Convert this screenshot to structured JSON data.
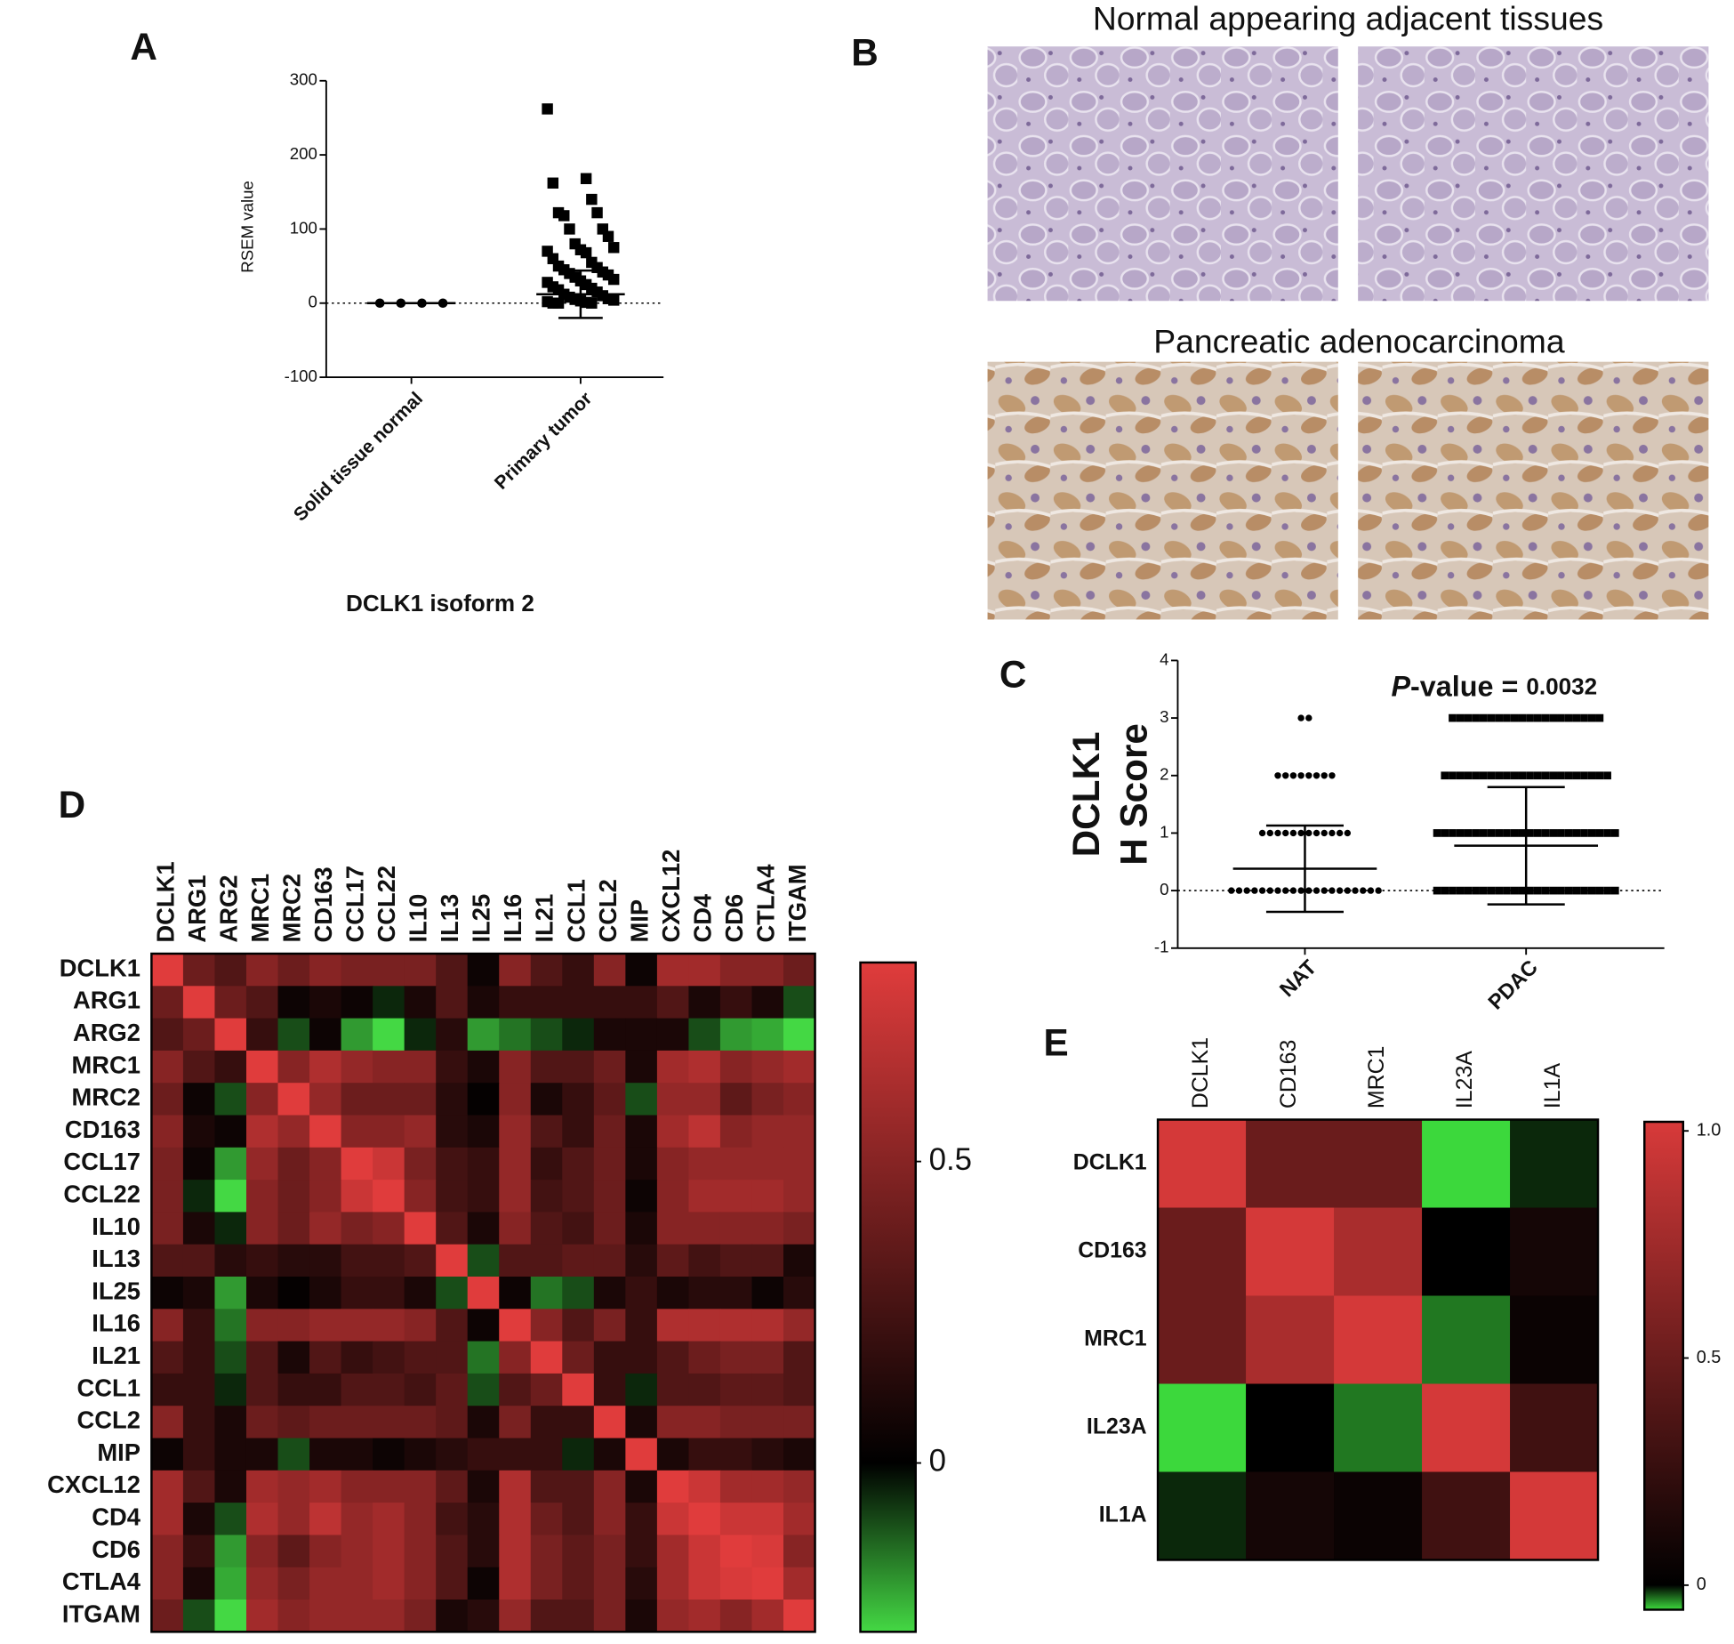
{
  "chart_data": [
    {
      "type": "dot",
      "label": "A",
      "ylabel": "RSEM value",
      "xlabel": "DCLK1 isoform 2",
      "categories": [
        "Solid tissue normal",
        "Primary tumor"
      ],
      "values": [
        [
          0,
          0,
          0,
          0
        ],
        [
          262,
          168,
          162,
          140,
          122,
          122,
          118,
          100,
          100,
          90,
          80,
          75,
          72,
          70,
          68,
          60,
          55,
          50,
          48,
          45,
          42,
          40,
          38,
          35,
          32,
          30,
          28,
          25,
          22,
          20,
          18,
          15,
          12,
          10,
          8,
          6,
          5,
          4,
          3,
          2,
          1,
          0,
          0,
          0
        ]
      ],
      "mean": [
        0,
        12
      ],
      "sd": [
        0,
        32
      ],
      "markers": [
        "circle",
        "square"
      ],
      "color": "#000000",
      "ylim": [
        -100,
        300
      ],
      "yticks": [
        -100,
        0,
        100,
        200,
        300
      ],
      "refline": 0
    },
    {
      "type": "dot",
      "label": "C",
      "ylabel": [
        "DCLK1",
        "H Score"
      ],
      "annotation": [
        "P",
        "-value = ",
        "0.0032"
      ],
      "categories": [
        "NAT",
        "PDAC"
      ],
      "values": [
        [
          3,
          3,
          2,
          2,
          2,
          2,
          2,
          2,
          2,
          2,
          1,
          1,
          1,
          1,
          1,
          1,
          1,
          1,
          1,
          1,
          1,
          1,
          0,
          0,
          0,
          0,
          0,
          0,
          0,
          0,
          0,
          0,
          0,
          0,
          0,
          0,
          0,
          0,
          0,
          0,
          0,
          0
        ],
        [
          3,
          3,
          3,
          3,
          3,
          3,
          3,
          3,
          3,
          3,
          3,
          3,
          3,
          3,
          3,
          3,
          3,
          3,
          3,
          3,
          2,
          2,
          2,
          2,
          2,
          2,
          2,
          2,
          2,
          2,
          2,
          2,
          2,
          2,
          2,
          2,
          2,
          2,
          2,
          2,
          2,
          2,
          1,
          1,
          1,
          1,
          1,
          1,
          1,
          1,
          1,
          1,
          1,
          1,
          1,
          1,
          1,
          1,
          1,
          1,
          1,
          1,
          1,
          1,
          1,
          1,
          0,
          0,
          0,
          0,
          0,
          0,
          0,
          0,
          0,
          0,
          0,
          0,
          0,
          0,
          0,
          0,
          0,
          0,
          0,
          0,
          0,
          0,
          0,
          0
        ]
      ],
      "mean": [
        0.38,
        0.78
      ],
      "sd": [
        0.75,
        1.02
      ],
      "markers": [
        "circle",
        "square"
      ],
      "color": "#000000",
      "ylim": [
        -1,
        4
      ],
      "yticks": [
        -1,
        0,
        1,
        2,
        3,
        4
      ],
      "refline": 0
    },
    {
      "type": "heatmap",
      "label": "D",
      "x_categories": [
        "DCLK1",
        "ARG1",
        "ARG2",
        "MRC1",
        "MRC2",
        "CD163",
        "CCL17",
        "CCL22",
        "IL10",
        "IL13",
        "IL25",
        "IL16",
        "IL21",
        "CCL1",
        "CCL2",
        "MIP",
        "CXCL12",
        "CD4",
        "CD6",
        "CTLA4",
        "ITGAM"
      ],
      "y_categories": [
        "DCLK1",
        "ARG1",
        "ARG2",
        "MRC1",
        "MRC2",
        "CD163",
        "CCL17",
        "CCL22",
        "IL10",
        "IL13",
        "IL25",
        "IL16",
        "IL21",
        "CCL1",
        "CCL2",
        "MIP",
        "CXCL12",
        "CD4",
        "CD6",
        "CTLA4",
        "ITGAM"
      ],
      "values": [
        [
          1,
          0.4,
          0.3,
          0.5,
          0.4,
          0.5,
          0.45,
          0.45,
          0.45,
          0.3,
          0.05,
          0.5,
          0.3,
          0.2,
          0.5,
          0.05,
          0.6,
          0.6,
          0.5,
          0.5,
          0.4
        ],
        [
          0.4,
          1,
          0.4,
          0.3,
          0.05,
          0.1,
          0.05,
          -0.05,
          0.1,
          0.3,
          0.1,
          0.2,
          0.2,
          0.2,
          0.2,
          0.2,
          0.3,
          0.1,
          0.2,
          0.1,
          -0.1
        ],
        [
          0.3,
          0.4,
          1,
          0.2,
          -0.1,
          0.05,
          -0.2,
          -0.28,
          -0.05,
          0.15,
          -0.2,
          -0.15,
          -0.1,
          -0.05,
          0.1,
          0.1,
          0.1,
          -0.1,
          -0.2,
          -0.22,
          -0.28
        ],
        [
          0.5,
          0.3,
          0.2,
          1,
          0.5,
          0.65,
          0.55,
          0.5,
          0.5,
          0.2,
          0.1,
          0.5,
          0.3,
          0.3,
          0.4,
          0.1,
          0.6,
          0.65,
          0.5,
          0.55,
          0.6
        ],
        [
          0.4,
          0.05,
          -0.1,
          0.5,
          1,
          0.55,
          0.4,
          0.4,
          0.4,
          0.15,
          0.02,
          0.5,
          0.1,
          0.2,
          0.35,
          -0.1,
          0.55,
          0.55,
          0.35,
          0.45,
          0.5
        ],
        [
          0.5,
          0.1,
          0.05,
          0.65,
          0.55,
          1,
          0.5,
          0.5,
          0.55,
          0.15,
          0.1,
          0.55,
          0.3,
          0.2,
          0.4,
          0.1,
          0.6,
          0.7,
          0.5,
          0.55,
          0.55
        ],
        [
          0.45,
          0.05,
          -0.2,
          0.55,
          0.4,
          0.5,
          1,
          0.75,
          0.45,
          0.25,
          0.2,
          0.55,
          0.2,
          0.3,
          0.4,
          0.1,
          0.5,
          0.55,
          0.55,
          0.55,
          0.55
        ],
        [
          0.45,
          -0.05,
          -0.28,
          0.5,
          0.4,
          0.5,
          0.75,
          1,
          0.5,
          0.25,
          0.2,
          0.55,
          0.25,
          0.3,
          0.4,
          0.05,
          0.5,
          0.6,
          0.6,
          0.6,
          0.55
        ],
        [
          0.45,
          0.1,
          -0.05,
          0.5,
          0.4,
          0.55,
          0.45,
          0.5,
          1,
          0.3,
          0.1,
          0.5,
          0.3,
          0.25,
          0.4,
          0.1,
          0.5,
          0.5,
          0.5,
          0.5,
          0.45
        ],
        [
          0.3,
          0.3,
          0.15,
          0.2,
          0.15,
          0.15,
          0.25,
          0.25,
          0.3,
          1,
          -0.1,
          0.3,
          0.3,
          0.35,
          0.35,
          0.15,
          0.35,
          0.25,
          0.3,
          0.3,
          0.1
        ],
        [
          0.05,
          0.1,
          -0.2,
          0.1,
          0.02,
          0.1,
          0.2,
          0.2,
          0.1,
          -0.1,
          1,
          0.05,
          -0.15,
          -0.1,
          0.1,
          0.2,
          0.1,
          0.15,
          0.15,
          0.05,
          0.15
        ],
        [
          0.5,
          0.2,
          -0.15,
          0.5,
          0.5,
          0.55,
          0.55,
          0.55,
          0.5,
          0.3,
          0.05,
          1,
          0.5,
          0.3,
          0.45,
          0.2,
          0.65,
          0.65,
          0.65,
          0.65,
          0.55
        ],
        [
          0.3,
          0.2,
          -0.1,
          0.3,
          0.1,
          0.3,
          0.2,
          0.25,
          0.3,
          0.3,
          -0.15,
          0.5,
          1,
          0.4,
          0.2,
          0.2,
          0.3,
          0.4,
          0.45,
          0.45,
          0.3
        ],
        [
          0.2,
          0.2,
          -0.05,
          0.3,
          0.2,
          0.2,
          0.3,
          0.3,
          0.25,
          0.35,
          -0.1,
          0.3,
          0.4,
          1,
          0.2,
          -0.05,
          0.3,
          0.3,
          0.35,
          0.35,
          0.3
        ],
        [
          0.5,
          0.2,
          0.1,
          0.4,
          0.35,
          0.4,
          0.4,
          0.4,
          0.4,
          0.35,
          0.1,
          0.45,
          0.2,
          0.2,
          1,
          0.1,
          0.5,
          0.5,
          0.45,
          0.45,
          0.45
        ],
        [
          0.05,
          0.2,
          0.1,
          0.1,
          -0.1,
          0.1,
          0.1,
          0.05,
          0.1,
          0.15,
          0.2,
          0.2,
          0.2,
          -0.05,
          0.1,
          1,
          0.1,
          0.2,
          0.2,
          0.15,
          0.1
        ],
        [
          0.6,
          0.3,
          0.1,
          0.6,
          0.55,
          0.6,
          0.5,
          0.5,
          0.5,
          0.35,
          0.1,
          0.65,
          0.3,
          0.3,
          0.5,
          0.1,
          1,
          0.75,
          0.6,
          0.6,
          0.55
        ],
        [
          0.6,
          0.1,
          -0.1,
          0.65,
          0.55,
          0.7,
          0.55,
          0.6,
          0.5,
          0.25,
          0.15,
          0.65,
          0.4,
          0.3,
          0.5,
          0.2,
          0.75,
          1,
          0.75,
          0.75,
          0.6
        ],
        [
          0.5,
          0.2,
          -0.2,
          0.5,
          0.35,
          0.5,
          0.55,
          0.6,
          0.5,
          0.3,
          0.15,
          0.65,
          0.45,
          0.35,
          0.45,
          0.2,
          0.6,
          0.75,
          1,
          0.8,
          0.5
        ],
        [
          0.5,
          0.1,
          -0.22,
          0.55,
          0.45,
          0.55,
          0.55,
          0.6,
          0.5,
          0.3,
          0.05,
          0.65,
          0.45,
          0.35,
          0.45,
          0.15,
          0.6,
          0.75,
          0.8,
          1,
          0.6
        ],
        [
          0.4,
          -0.1,
          -0.28,
          0.6,
          0.5,
          0.55,
          0.55,
          0.55,
          0.45,
          0.1,
          0.15,
          0.55,
          0.3,
          0.3,
          0.45,
          0.1,
          0.55,
          0.6,
          0.5,
          0.6,
          1
        ]
      ],
      "colors": [
        "#44d844",
        "#000000",
        "#e03c3c"
      ],
      "clim": [
        -0.28,
        0.83
      ],
      "colorbar_ticks": [
        0,
        0.5
      ]
    },
    {
      "type": "heatmap",
      "label": "E",
      "x_categories": [
        "DCLK1",
        "CD163",
        "MRC1",
        "IL23A",
        "IL1A"
      ],
      "y_categories": [
        "DCLK1",
        "CD163",
        "MRC1",
        "IL23A",
        "IL1A"
      ],
      "values": [
        [
          1,
          0.5,
          0.5,
          -0.054,
          -0.01
        ],
        [
          0.5,
          1,
          0.8,
          0,
          0.1
        ],
        [
          0.5,
          0.8,
          1,
          -0.03,
          0.05
        ],
        [
          -0.054,
          0,
          -0.03,
          1,
          0.3
        ],
        [
          -0.01,
          0.1,
          0.05,
          0.3,
          1
        ]
      ],
      "colors": [
        "#3cd83c",
        "#000000",
        "#d83a3a"
      ],
      "clim": [
        -0.054,
        1.02
      ],
      "colorbar_ticks": [
        0,
        0.5,
        {
          "value": 1,
          "label": "1.0"
        }
      ]
    }
  ],
  "images": {
    "label": "B",
    "top_title": "Normal appearing adjacent tissues",
    "bottom_title": "Pancreatic adenocarcinoma"
  }
}
